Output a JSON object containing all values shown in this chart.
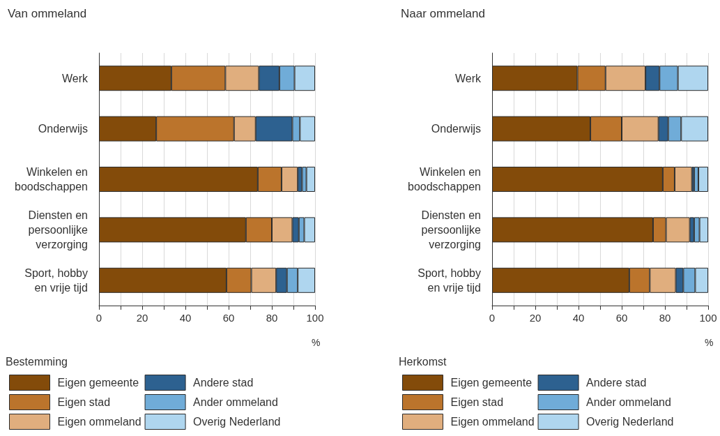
{
  "chart_data": [
    {
      "type": "bar",
      "title": "Van ommeland",
      "xlabel": "%",
      "legend_title": "Bestemming",
      "orientation": "horizontal",
      "stacked": true,
      "categories": [
        "Werk",
        "Onderwijs",
        "Winkelen en\nboodschappen",
        "Diensten en\npersoonlijke\nverzorging",
        "Sport, hobby\nen vrije tijd"
      ],
      "series": [
        {
          "name": "Eigen gemeente",
          "color": "#834b0a",
          "values": [
            33.5,
            26.5,
            73.5,
            68,
            59
          ]
        },
        {
          "name": "Eigen stad",
          "color": "#bb742c",
          "values": [
            25,
            36,
            11,
            12,
            11.5
          ]
        },
        {
          "name": "Eigen ommeland",
          "color": "#e0ae7e",
          "values": [
            15.5,
            10,
            7.5,
            9.5,
            11.5
          ]
        },
        {
          "name": "Andere stad",
          "color": "#2d6190",
          "values": [
            9.5,
            17,
            2,
            3,
            5
          ]
        },
        {
          "name": "Ander ommeland",
          "color": "#70acd8",
          "values": [
            7,
            3.5,
            2,
            2.5,
            5
          ]
        },
        {
          "name": "Overig Nederland",
          "color": "#afd6ef",
          "values": [
            9.5,
            7,
            4,
            5,
            8
          ]
        }
      ],
      "xlim": [
        0,
        100
      ],
      "xticks": [
        0,
        {
          "value": 10,
          "label": null
        },
        20,
        {
          "value": 30,
          "label": null
        },
        40,
        {
          "value": 50,
          "label": null
        },
        60,
        {
          "value": 70,
          "label": null
        },
        80,
        {
          "value": 90,
          "label": null
        },
        100
      ],
      "grid": "x",
      "legend": "bottom"
    },
    {
      "type": "bar",
      "title": "Naar ommeland",
      "xlabel": "%",
      "legend_title": "Herkomst",
      "orientation": "horizontal",
      "stacked": true,
      "categories": [
        "Werk",
        "Onderwijs",
        "Winkelen en\nboodschappen",
        "Diensten en\npersoonlijke\nverzorging",
        "Sport, hobby\nen vrije tijd"
      ],
      "series": [
        {
          "name": "Eigen gemeente",
          "color": "#834b0a",
          "values": [
            39.5,
            45.5,
            79,
            74.5,
            63.5
          ]
        },
        {
          "name": "Eigen stad",
          "color": "#bb742c",
          "values": [
            13,
            14.5,
            5.5,
            6,
            9.5
          ]
        },
        {
          "name": "Eigen ommeland",
          "color": "#e0ae7e",
          "values": [
            18.5,
            17,
            8,
            11,
            12
          ]
        },
        {
          "name": "Andere stad",
          "color": "#2d6190",
          "values": [
            6.5,
            4.5,
            1,
            2,
            3.5
          ]
        },
        {
          "name": "Ander ommeland",
          "color": "#70acd8",
          "values": [
            8.5,
            6,
            2,
            2.5,
            5.5
          ]
        },
        {
          "name": "Overig Nederland",
          "color": "#afd6ef",
          "values": [
            14,
            12.5,
            4.5,
            4,
            6
          ]
        }
      ],
      "xlim": [
        0,
        100
      ],
      "xticks": [
        0,
        {
          "value": 10,
          "label": null
        },
        20,
        {
          "value": 30,
          "label": null
        },
        40,
        {
          "value": 50,
          "label": null
        },
        60,
        {
          "value": 70,
          "label": null
        },
        80,
        {
          "value": 90,
          "label": null
        },
        100
      ],
      "grid": "x",
      "legend": "bottom"
    }
  ]
}
